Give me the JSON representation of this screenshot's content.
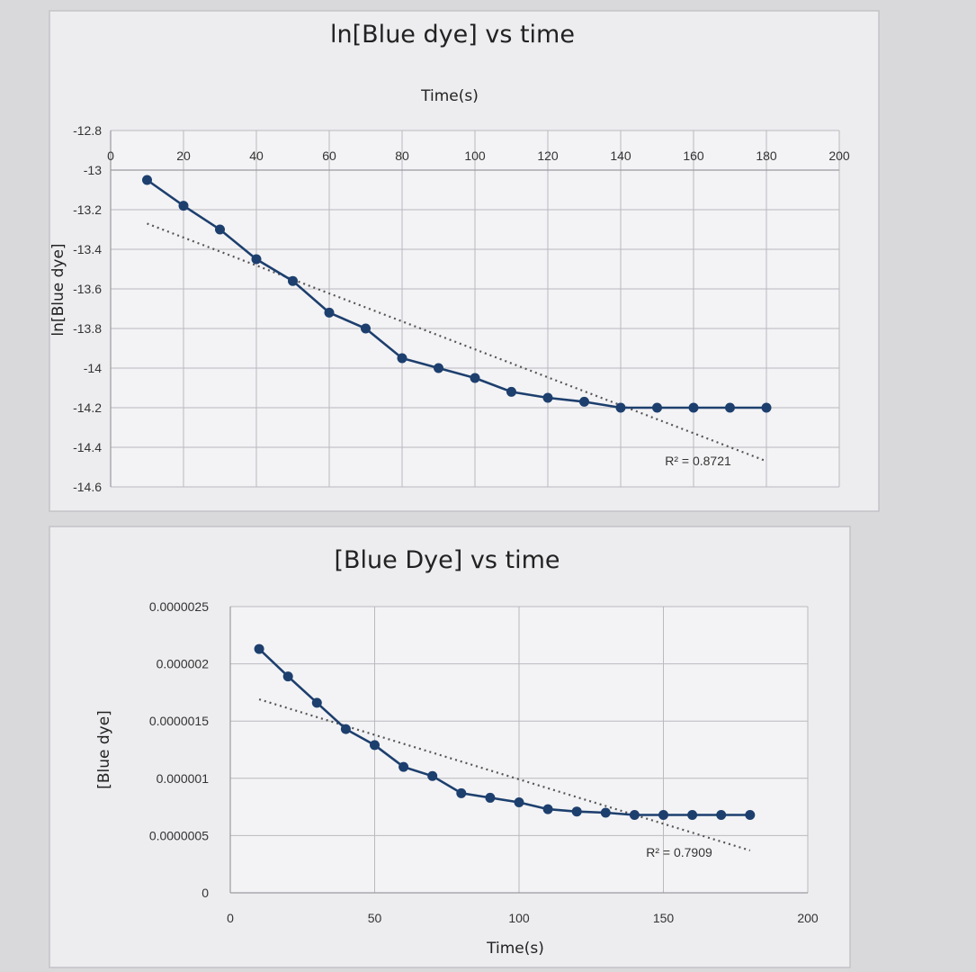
{
  "colors": {
    "series": "#1d3f6e",
    "trendline": "#555555",
    "grid": "#b9b9bf",
    "chart_bg": "#ededf0"
  },
  "chart_data": [
    {
      "type": "line",
      "title": "ln[Blue dye] vs time",
      "xlabel": "Time(s)",
      "ylabel": "ln[Blue dye]",
      "xlim": [
        0,
        200
      ],
      "ylim": [
        -14.6,
        -12.8
      ],
      "x_ticks": [
        "0",
        "20",
        "40",
        "60",
        "80",
        "100",
        "120",
        "140",
        "160",
        "180",
        "200"
      ],
      "y_ticks": [
        "-12.8",
        "-13",
        "-13.2",
        "-13.4",
        "-13.6",
        "-13.8",
        "-14",
        "-14.2",
        "-14.4",
        "-14.6"
      ],
      "x_axis_position": "top",
      "grid": true,
      "trendline": {
        "type": "linear",
        "label": "R² = 0.8721",
        "from": [
          10,
          -13.27
        ],
        "to": [
          180,
          -14.47
        ]
      },
      "series": [
        {
          "x": [
            10,
            20,
            30,
            40,
            50,
            60,
            70,
            80,
            90,
            100,
            110,
            120,
            130,
            140,
            150,
            160,
            170,
            180
          ],
          "values": [
            -13.05,
            -13.18,
            -13.3,
            -13.45,
            -13.56,
            -13.72,
            -13.8,
            -13.95,
            -14.0,
            -14.05,
            -14.12,
            -14.15,
            -14.17,
            -14.2,
            -14.2,
            -14.2,
            -14.2,
            -14.2
          ]
        }
      ]
    },
    {
      "type": "line",
      "title": "[Blue Dye] vs time",
      "xlabel": "Time(s)",
      "ylabel": "[Blue dye]",
      "xlim": [
        0,
        200
      ],
      "ylim": [
        0,
        2.5e-06
      ],
      "x_ticks": [
        "0",
        "50",
        "100",
        "150",
        "200"
      ],
      "y_ticks": [
        "0",
        "0.0000005",
        "0.000001",
        "0.0000015",
        "0.000002",
        "0.0000025"
      ],
      "x_axis_position": "bottom",
      "grid": true,
      "trendline": {
        "type": "linear",
        "label": "R² = 0.7909",
        "from": [
          10,
          1.69e-06
        ],
        "to": [
          180,
          3.7e-07
        ]
      },
      "series": [
        {
          "x": [
            10,
            20,
            30,
            40,
            50,
            60,
            70,
            80,
            90,
            100,
            110,
            120,
            130,
            140,
            150,
            160,
            170,
            180
          ],
          "values": [
            2.13e-06,
            1.89e-06,
            1.66e-06,
            1.43e-06,
            1.29e-06,
            1.1e-06,
            1.02e-06,
            8.7e-07,
            8.3e-07,
            7.9e-07,
            7.3e-07,
            7.1e-07,
            7e-07,
            6.8e-07,
            6.8e-07,
            6.8e-07,
            6.8e-07,
            6.8e-07
          ]
        }
      ]
    }
  ]
}
